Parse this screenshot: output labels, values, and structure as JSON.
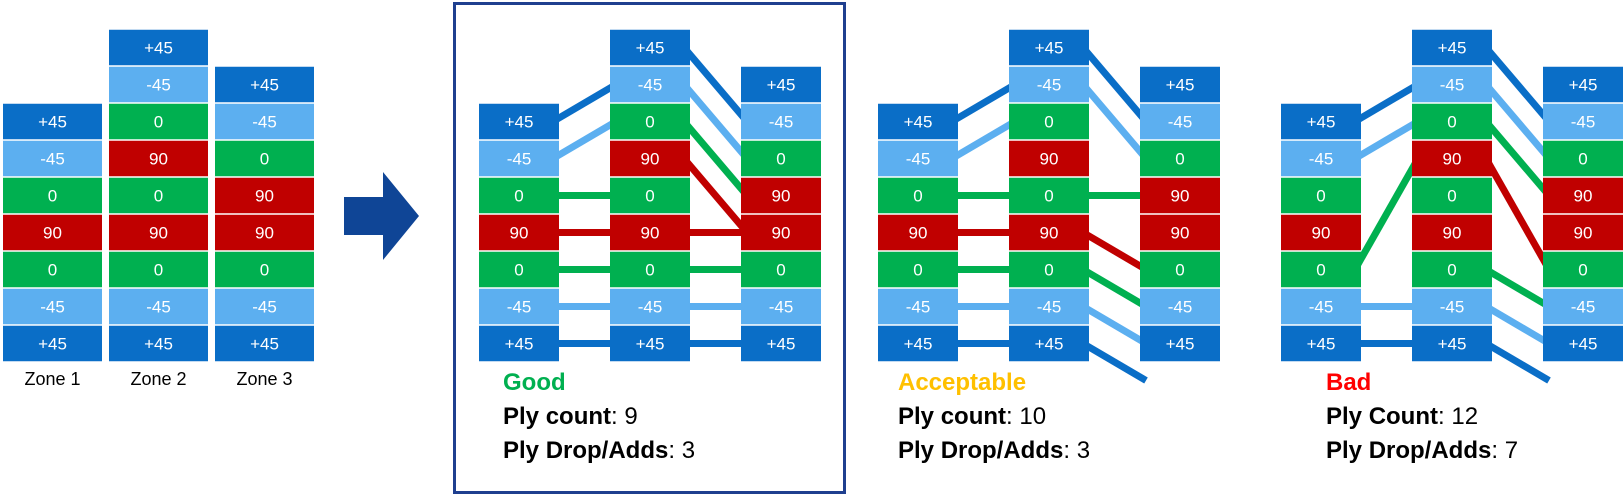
{
  "colors": {
    "+45": "#0a6ec7",
    "-45": "#5caff0",
    "0": "#00b050",
    "90": "#c00000",
    "arrow": "#0f4596",
    "frame": "#1f3f8f",
    "good": "#00b050",
    "acceptable": "#ffc000",
    "bad": "#ff0000"
  },
  "source_zones": [
    {
      "name": "Zone 1",
      "plies": [
        "+45",
        "-45",
        "0",
        "90",
        "0",
        "-45",
        "+45"
      ]
    },
    {
      "name": "Zone 2",
      "plies": [
        "+45",
        "-45",
        "0",
        "90",
        "0",
        "90",
        "0",
        "-45",
        "+45"
      ]
    },
    {
      "name": "Zone 3",
      "plies": [
        "+45",
        "-45",
        "0",
        "90",
        "90",
        "0",
        "-45",
        "+45"
      ]
    }
  ],
  "options": [
    {
      "rating": "Good",
      "rating_color": "good",
      "count_label": "Ply count",
      "count_value": "9",
      "drop_label": "Ply Drop/Adds",
      "drop_value": "3",
      "stacks": [
        [
          "+45",
          "-45",
          "0",
          "90",
          "0",
          "-45",
          "+45"
        ],
        [
          "+45",
          "-45",
          "0",
          "90",
          "0",
          "90",
          "0",
          "-45",
          "+45"
        ],
        [
          "+45",
          "-45",
          "0",
          "90",
          "90",
          "0",
          "-45",
          "+45"
        ]
      ],
      "links_12": [
        [
          0,
          1
        ],
        [
          1,
          2
        ],
        [
          2,
          4
        ],
        [
          3,
          5
        ],
        [
          4,
          6
        ],
        [
          5,
          7
        ],
        [
          6,
          8
        ]
      ],
      "links_23": [
        [
          0,
          1
        ],
        [
          1,
          2
        ],
        [
          2,
          3
        ],
        [
          3,
          4
        ],
        [
          5,
          4
        ],
        [
          6,
          5
        ],
        [
          7,
          6
        ],
        [
          8,
          7
        ]
      ]
    },
    {
      "rating": "Acceptable",
      "rating_color": "acceptable",
      "count_label": "Ply count",
      "count_value": "10",
      "drop_label": "Ply Drop/Adds",
      "drop_value": "3",
      "stacks": [
        [
          "+45",
          "-45",
          "0",
          "90",
          "0",
          "-45",
          "+45"
        ],
        [
          "+45",
          "-45",
          "0",
          "90",
          "0",
          "90",
          "0",
          "-45",
          "+45"
        ],
        [
          "+45",
          "-45",
          "0",
          "90",
          "90",
          "0",
          "-45",
          "+45"
        ]
      ],
      "links_12": [
        [
          0,
          1
        ],
        [
          1,
          2
        ],
        [
          2,
          4
        ],
        [
          3,
          5
        ],
        [
          4,
          6
        ],
        [
          5,
          7
        ],
        [
          6,
          8
        ]
      ],
      "links_23": [
        [
          0,
          1
        ],
        [
          1,
          2
        ],
        [
          4,
          3
        ],
        [
          5,
          5
        ],
        [
          6,
          6
        ],
        [
          7,
          7
        ],
        [
          8,
          8
        ]
      ]
    },
    {
      "rating": "Bad",
      "rating_color": "bad",
      "count_label": "Ply Count",
      "count_value": "12",
      "drop_label": "Ply Drop/Adds",
      "drop_value": "7",
      "stacks": [
        [
          "+45",
          "-45",
          "0",
          "90",
          "0",
          "-45",
          "+45"
        ],
        [
          "+45",
          "-45",
          "0",
          "90",
          "0",
          "90",
          "0",
          "-45",
          "+45"
        ],
        [
          "+45",
          "-45",
          "0",
          "90",
          "90",
          "0",
          "-45",
          "+45"
        ]
      ],
      "links_12": [
        [
          0,
          1
        ],
        [
          1,
          2
        ],
        [
          4,
          3
        ],
        [
          5,
          7
        ],
        [
          6,
          8
        ]
      ],
      "links_23": [
        [
          0,
          1
        ],
        [
          1,
          2
        ],
        [
          2,
          3
        ],
        [
          3,
          5
        ],
        [
          6,
          6
        ],
        [
          7,
          7
        ],
        [
          8,
          8
        ]
      ]
    }
  ]
}
